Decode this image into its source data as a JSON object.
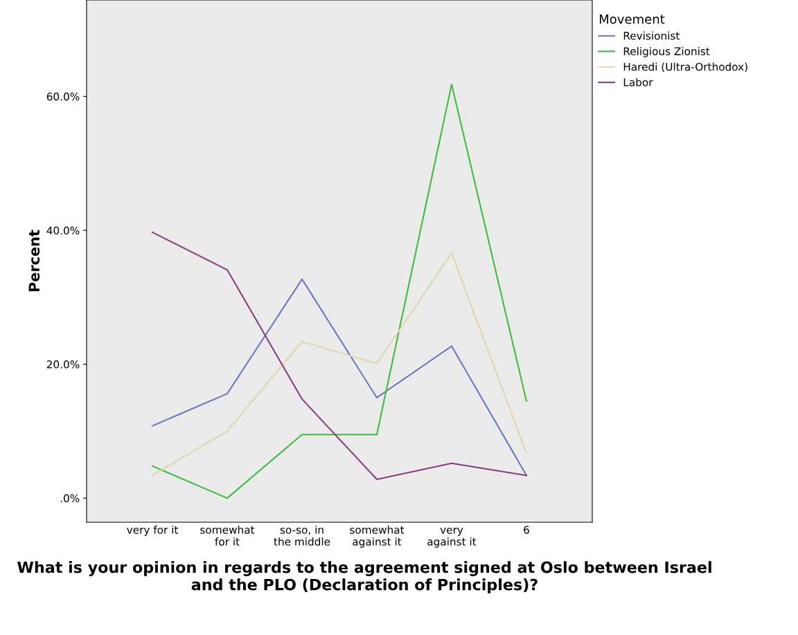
{
  "chart_data": {
    "type": "line",
    "xlabel": "What is your opinion in regards to the agreement signed at Oslo between Israel and the PLO (Declaration of Principles)?",
    "ylabel": "Percent",
    "legend_title": "Movement",
    "categories": [
      "very for it",
      "somewhat\nfor it",
      "so-so, in\nthe middle",
      "somewhat\nagainst it",
      "very\nagainst it",
      "6"
    ],
    "series": [
      {
        "name": "Revisionist",
        "color": "#6a78c5",
        "values": [
          10.8,
          15.6,
          32.7,
          15.0,
          22.7,
          3.4
        ]
      },
      {
        "name": "Religious Zionist",
        "color": "#3dbd3d",
        "values": [
          4.8,
          0.0,
          9.5,
          9.5,
          61.8,
          14.5
        ]
      },
      {
        "name": "Haredi (Ultra-Orthodox)",
        "color": "#e0d8a8",
        "values": [
          3.4,
          10.0,
          23.4,
          20.1,
          36.6,
          6.7
        ]
      },
      {
        "name": "Labor",
        "color": "#8b3a7e",
        "values": [
          39.7,
          34.1,
          14.8,
          2.8,
          5.2,
          3.4
        ]
      }
    ],
    "ylim": [
      -3.6,
      74.4
    ],
    "yticks": [
      {
        "value": 0,
        "label": ".0%"
      },
      {
        "value": 20,
        "label": "20.0%"
      },
      {
        "value": 40,
        "label": "40.0%"
      },
      {
        "value": 60,
        "label": "60.0%"
      }
    ],
    "grid": false,
    "legend": "top right",
    "marker": "none",
    "line_style": "solid"
  }
}
